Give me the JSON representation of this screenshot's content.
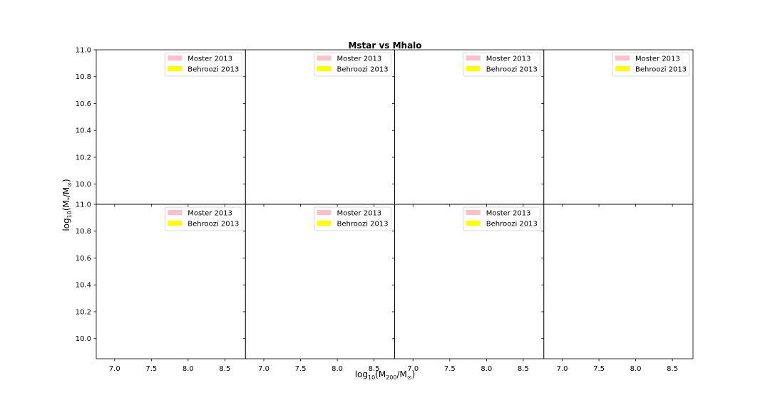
{
  "chart_data": {
    "type": "line",
    "title": "Mstar vs Mhalo",
    "xlabel": "log10(M200/M⊙)",
    "ylabel": "log10(M*/M⊙)",
    "xlim": [
      6.75,
      8.78
    ],
    "ylim": [
      9.85,
      11.0
    ],
    "xticks": [
      "7.0",
      "7.5",
      "8.0",
      "8.5"
    ],
    "yticks": [
      "10.0",
      "10.2",
      "10.4",
      "10.6",
      "10.8",
      "11.0"
    ],
    "rows": 2,
    "cols": 4,
    "grid": false,
    "legend_position": "upper right",
    "series": [
      {
        "name": "Moster 2013",
        "color": "#ffc0cb",
        "x": [],
        "y": []
      },
      {
        "name": "Behroozi 2013",
        "color": "#ffff00",
        "x": [],
        "y": []
      }
    ],
    "panels_with_legend": [
      true,
      true,
      true,
      true,
      true,
      true,
      true,
      false
    ]
  }
}
